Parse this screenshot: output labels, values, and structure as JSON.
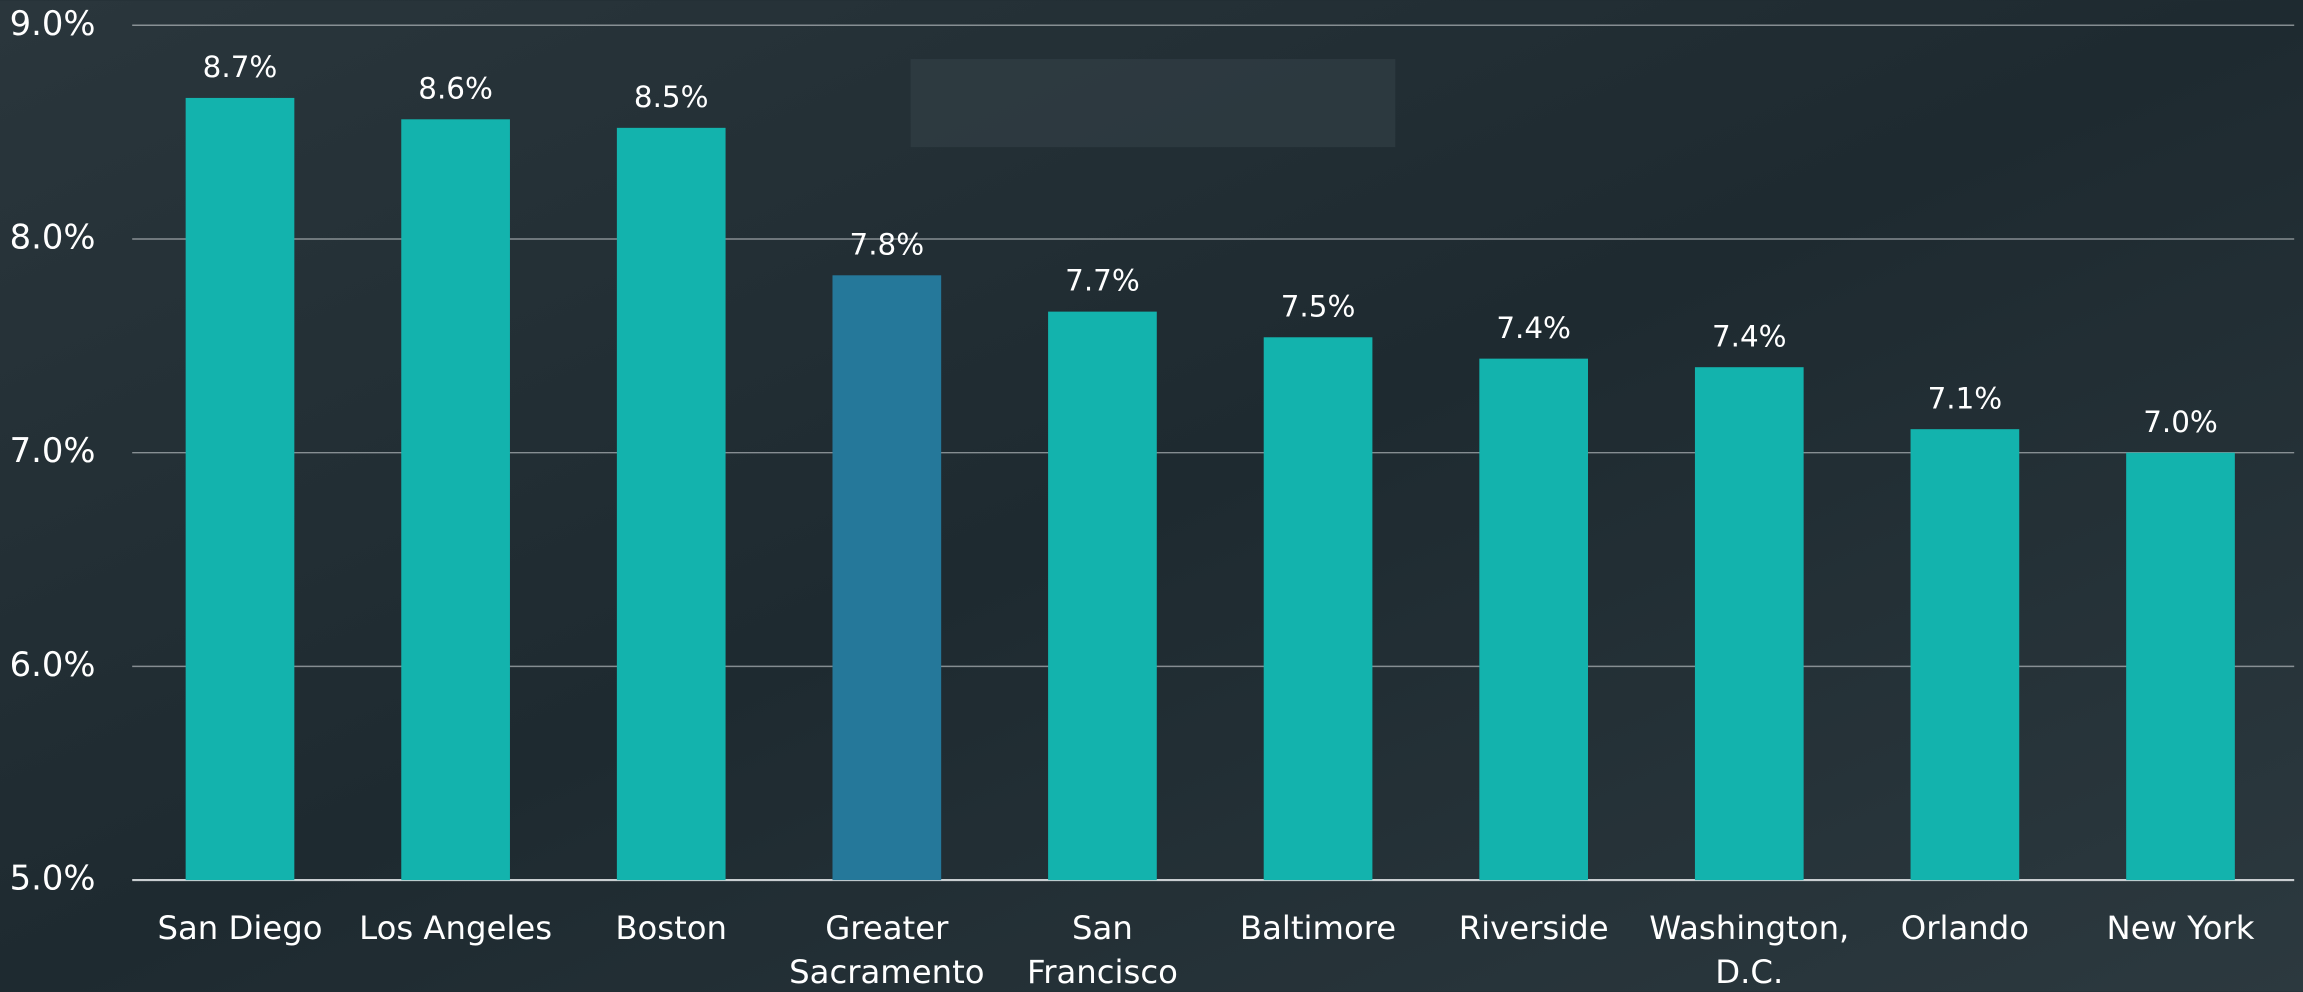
{
  "chart_data": {
    "type": "bar",
    "categories": [
      "San Diego",
      "Los Angeles",
      "Boston",
      "Greater\nSacramento",
      "San\nFrancisco",
      "Baltimore",
      "Riverside",
      "Washington,\nD.C.",
      "Orlando",
      "New York"
    ],
    "values": [
      8.66,
      8.56,
      8.52,
      7.83,
      7.66,
      7.54,
      7.44,
      7.4,
      7.11,
      7.0
    ],
    "value_labels": [
      "8.7%",
      "8.6%",
      "8.5%",
      "7.8%",
      "7.7%",
      "7.5%",
      "7.4%",
      "7.4%",
      "7.1%",
      "7.0%"
    ],
    "colors": [
      "#13b3ad",
      "#13b3ad",
      "#13b3ad",
      "#25789a",
      "#13b3ad",
      "#13b3ad",
      "#13b3ad",
      "#13b3ad",
      "#13b3ad",
      "#13b3ad"
    ],
    "ylim": [
      5,
      9
    ],
    "yticks": [
      {
        "value": 5,
        "label": "5.0%"
      },
      {
        "value": 6,
        "label": "6.0%"
      },
      {
        "value": 7,
        "label": "7.0%"
      },
      {
        "value": 8,
        "label": "8.0%"
      },
      {
        "value": 9,
        "label": "9.0%"
      }
    ],
    "grid": true
  }
}
